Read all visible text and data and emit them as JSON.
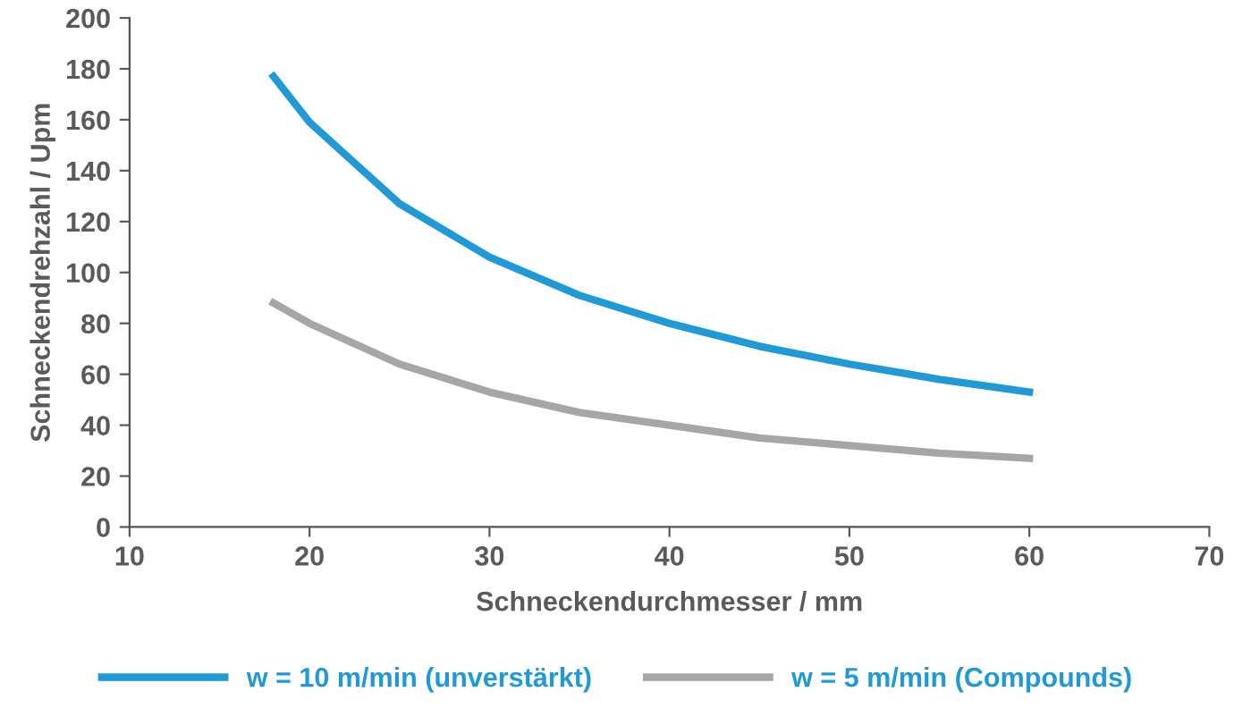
{
  "chart_data": {
    "type": "line",
    "xlabel": "Schneckendurchmesser / mm",
    "ylabel": "Schneckendrehzahl / Upm",
    "xlim": [
      10,
      70
    ],
    "xticks": [
      10,
      20,
      30,
      40,
      50,
      60,
      70
    ],
    "ylim": [
      0,
      200
    ],
    "yticks": [
      0,
      20,
      40,
      60,
      80,
      100,
      120,
      140,
      160,
      180,
      200
    ],
    "grid": false,
    "legend": "bottom",
    "marker": "none",
    "line_style": "solid",
    "series": [
      {
        "name": "w = 10 m/min (unverstärkt)",
        "color": "#1f9ad6",
        "x": [
          18,
          20,
          25,
          30,
          35,
          40,
          45,
          50,
          55,
          60
        ],
        "values": [
          177,
          159,
          127,
          106,
          91,
          80,
          71,
          64,
          58,
          53
        ]
      },
      {
        "name": "w = 5 m/min (Compounds)",
        "color": "#a6a6a6",
        "x": [
          18,
          20,
          25,
          30,
          35,
          40,
          45,
          50,
          55,
          60
        ],
        "values": [
          88,
          80,
          64,
          53,
          45,
          40,
          35,
          32,
          29,
          27
        ]
      }
    ]
  }
}
